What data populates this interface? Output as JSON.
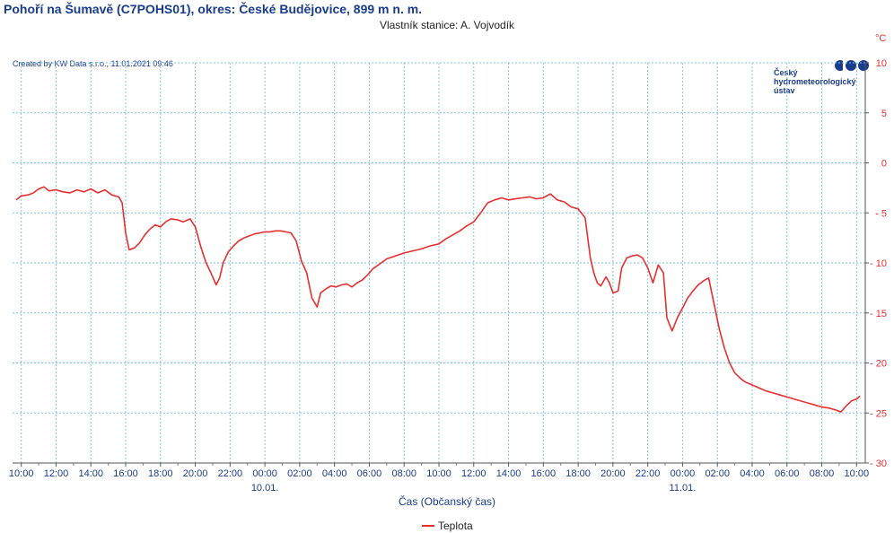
{
  "header": {
    "title": "Pohoří na Šumavě (C7POHS01), okres: České Budějovice, 899 m n. m.",
    "owner": "Vlastník stanice: A. Vojvodík"
  },
  "credit": "Created by KW Data s.r.o., 11.01.2021 09:46",
  "logo": {
    "line1": "Český",
    "line2": "hydrometeorologický",
    "line3": "ústav"
  },
  "colors": {
    "series": "#e53030",
    "axis_text": "#1a3c8c",
    "grid": "#7fc4e0",
    "unit": "#e53030"
  },
  "chart_data": {
    "type": "line",
    "xlabel": "Čas (Občanský čas)",
    "ylabel": "°C",
    "y_axis_side": "right",
    "ylim": [
      -30,
      10
    ],
    "y_ticks": [
      10,
      5,
      0,
      -5,
      -10,
      -15,
      -20,
      -25,
      -30
    ],
    "xlim": [
      -0.5,
      48.5
    ],
    "x_ticks": [
      "10:00",
      "12:00",
      "14:00",
      "16:00",
      "18:00",
      "20:00",
      "22:00",
      "00:00",
      "02:00",
      "04:00",
      "06:00",
      "08:00",
      "10:00",
      "12:00",
      "14:00",
      "16:00",
      "18:00",
      "20:00",
      "22:00",
      "00:00",
      "02:00",
      "04:00",
      "06:00",
      "08:00",
      "10:00"
    ],
    "date_labels": [
      {
        "x": 14,
        "label": "10.01."
      },
      {
        "x": 38,
        "label": "11.01."
      }
    ],
    "x_unit": "hours since 09.01. 10:00",
    "grid": true,
    "legend_position": "bottom-center",
    "series": [
      {
        "name": "Teplota",
        "color": "#e53030",
        "points": [
          [
            -0.3,
            -3.7
          ],
          [
            0,
            -3.3
          ],
          [
            0.4,
            -3.2
          ],
          [
            0.7,
            -3.0
          ],
          [
            1,
            -2.6
          ],
          [
            1.3,
            -2.4
          ],
          [
            1.6,
            -2.8
          ],
          [
            2,
            -2.7
          ],
          [
            2.4,
            -2.9
          ],
          [
            2.8,
            -3.0
          ],
          [
            3.2,
            -2.7
          ],
          [
            3.6,
            -2.9
          ],
          [
            4,
            -2.6
          ],
          [
            4.4,
            -3.0
          ],
          [
            4.8,
            -2.7
          ],
          [
            5.2,
            -3.2
          ],
          [
            5.6,
            -3.4
          ],
          [
            5.8,
            -4.0
          ],
          [
            6,
            -7.0
          ],
          [
            6.2,
            -8.7
          ],
          [
            6.5,
            -8.5
          ],
          [
            6.8,
            -8.0
          ],
          [
            7.1,
            -7.2
          ],
          [
            7.4,
            -6.6
          ],
          [
            7.7,
            -6.2
          ],
          [
            8,
            -6.4
          ],
          [
            8.3,
            -5.9
          ],
          [
            8.6,
            -5.6
          ],
          [
            9,
            -5.7
          ],
          [
            9.3,
            -5.9
          ],
          [
            9.7,
            -5.6
          ],
          [
            10,
            -6.4
          ],
          [
            10.3,
            -8.3
          ],
          [
            10.6,
            -9.9
          ],
          [
            10.9,
            -11.0
          ],
          [
            11.2,
            -12.2
          ],
          [
            11.4,
            -11.5
          ],
          [
            11.6,
            -10.0
          ],
          [
            11.9,
            -8.9
          ],
          [
            12.2,
            -8.3
          ],
          [
            12.5,
            -7.8
          ],
          [
            12.8,
            -7.5
          ],
          [
            13.1,
            -7.3
          ],
          [
            13.4,
            -7.1
          ],
          [
            13.7,
            -7.0
          ],
          [
            14,
            -6.9
          ],
          [
            14.3,
            -6.9
          ],
          [
            14.6,
            -6.8
          ],
          [
            14.9,
            -6.8
          ],
          [
            15.2,
            -6.9
          ],
          [
            15.5,
            -7.0
          ],
          [
            15.8,
            -7.8
          ],
          [
            16.1,
            -9.8
          ],
          [
            16.4,
            -11.0
          ],
          [
            16.7,
            -13.5
          ],
          [
            17,
            -14.4
          ],
          [
            17.2,
            -13.0
          ],
          [
            17.5,
            -12.6
          ],
          [
            17.8,
            -12.3
          ],
          [
            18.1,
            -12.4
          ],
          [
            18.4,
            -12.2
          ],
          [
            18.7,
            -12.1
          ],
          [
            19,
            -12.4
          ],
          [
            19.3,
            -12.0
          ],
          [
            19.6,
            -11.7
          ],
          [
            19.9,
            -11.2
          ],
          [
            20.2,
            -10.6
          ],
          [
            20.6,
            -10.1
          ],
          [
            21,
            -9.6
          ],
          [
            21.5,
            -9.3
          ],
          [
            22,
            -9.0
          ],
          [
            22.5,
            -8.8
          ],
          [
            23,
            -8.6
          ],
          [
            23.5,
            -8.3
          ],
          [
            24,
            -8.1
          ],
          [
            24.4,
            -7.6
          ],
          [
            24.8,
            -7.2
          ],
          [
            25.2,
            -6.8
          ],
          [
            25.6,
            -6.3
          ],
          [
            26,
            -5.9
          ],
          [
            26.4,
            -5.0
          ],
          [
            26.8,
            -4.0
          ],
          [
            27.2,
            -3.7
          ],
          [
            27.6,
            -3.5
          ],
          [
            28,
            -3.7
          ],
          [
            28.4,
            -3.6
          ],
          [
            28.8,
            -3.5
          ],
          [
            29.2,
            -3.4
          ],
          [
            29.6,
            -3.6
          ],
          [
            30,
            -3.5
          ],
          [
            30.4,
            -3.1
          ],
          [
            30.6,
            -3.4
          ],
          [
            30.8,
            -3.7
          ],
          [
            31.2,
            -3.9
          ],
          [
            31.6,
            -4.4
          ],
          [
            32,
            -4.6
          ],
          [
            32.4,
            -5.5
          ],
          [
            32.7,
            -9.5
          ],
          [
            32.9,
            -11.0
          ],
          [
            33.1,
            -12.0
          ],
          [
            33.3,
            -12.3
          ],
          [
            33.6,
            -11.4
          ],
          [
            33.8,
            -12.0
          ],
          [
            34,
            -13.0
          ],
          [
            34.3,
            -12.8
          ],
          [
            34.5,
            -10.5
          ],
          [
            34.8,
            -9.5
          ],
          [
            35.1,
            -9.3
          ],
          [
            35.4,
            -9.2
          ],
          [
            35.7,
            -9.5
          ],
          [
            36,
            -10.5
          ],
          [
            36.3,
            -12.0
          ],
          [
            36.6,
            -10.2
          ],
          [
            36.9,
            -11.0
          ],
          [
            37.1,
            -15.5
          ],
          [
            37.4,
            -16.8
          ],
          [
            37.7,
            -15.5
          ],
          [
            38,
            -14.5
          ],
          [
            38.3,
            -13.5
          ],
          [
            38.6,
            -12.8
          ],
          [
            38.9,
            -12.2
          ],
          [
            39.2,
            -11.8
          ],
          [
            39.5,
            -11.5
          ],
          [
            39.8,
            -14.0
          ],
          [
            40.1,
            -16.5
          ],
          [
            40.4,
            -18.5
          ],
          [
            40.7,
            -20.0
          ],
          [
            41,
            -21.0
          ],
          [
            41.3,
            -21.5
          ],
          [
            41.6,
            -21.9
          ],
          [
            42,
            -22.2
          ],
          [
            42.4,
            -22.5
          ],
          [
            42.8,
            -22.8
          ],
          [
            43.2,
            -23.0
          ],
          [
            43.6,
            -23.2
          ],
          [
            44,
            -23.4
          ],
          [
            44.4,
            -23.6
          ],
          [
            44.8,
            -23.8
          ],
          [
            45.2,
            -24.0
          ],
          [
            45.6,
            -24.2
          ],
          [
            46,
            -24.4
          ],
          [
            46.4,
            -24.5
          ],
          [
            46.8,
            -24.7
          ],
          [
            47.1,
            -24.9
          ],
          [
            47.4,
            -24.3
          ],
          [
            47.7,
            -23.8
          ],
          [
            48,
            -23.6
          ],
          [
            48.2,
            -23.3
          ]
        ]
      }
    ]
  }
}
